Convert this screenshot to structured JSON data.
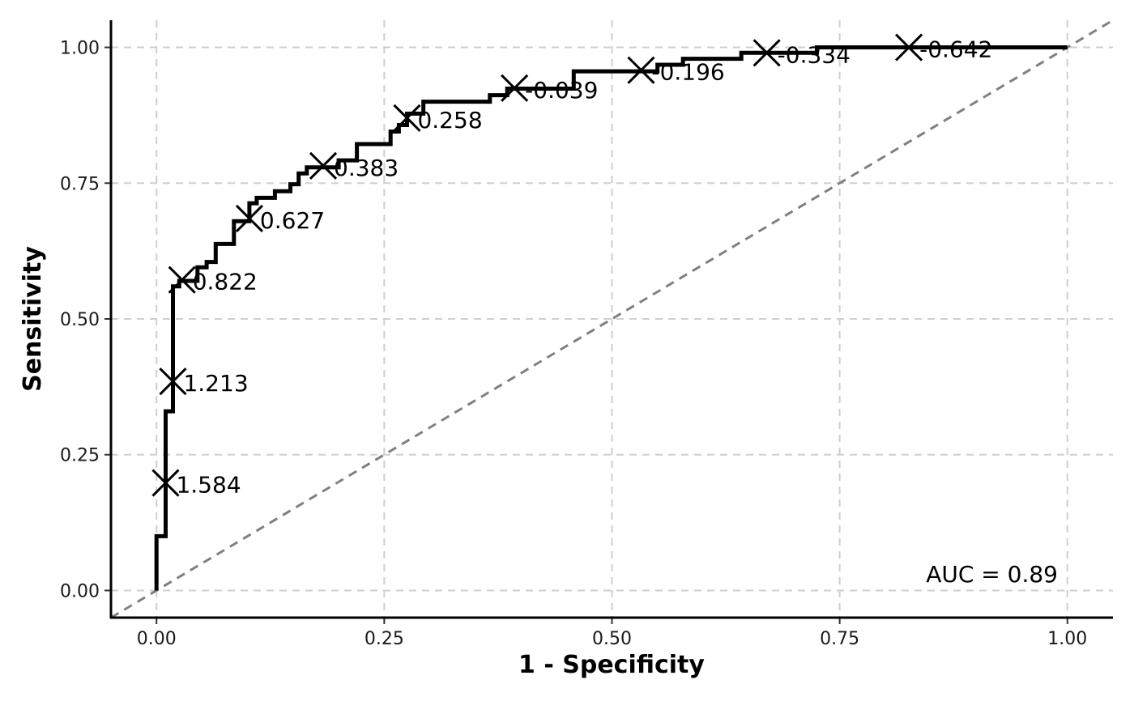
{
  "chart_data": {
    "type": "line",
    "xlabel": "1 - Specificity",
    "ylabel": "Sensitivity",
    "xlim": [
      -0.05,
      1.05
    ],
    "ylim": [
      -0.05,
      1.05
    ],
    "x_ticks": [
      "0.00",
      "0.25",
      "0.50",
      "0.75",
      "1.00"
    ],
    "y_ticks": [
      "0.00",
      "0.25",
      "0.50",
      "0.75",
      "1.00"
    ],
    "grid": "dashed major gridlines",
    "reference_line": {
      "from": [
        0,
        0
      ],
      "to": [
        1,
        1
      ],
      "style": "dashed",
      "color": "#808080"
    },
    "curve_color": "#000000",
    "roc_curve": [
      [
        0.0,
        0.0
      ],
      [
        0.0,
        0.1
      ],
      [
        0.01,
        0.1
      ],
      [
        0.01,
        0.33
      ],
      [
        0.018,
        0.33
      ],
      [
        0.018,
        0.56
      ],
      [
        0.025,
        0.56
      ],
      [
        0.025,
        0.57
      ],
      [
        0.045,
        0.57
      ],
      [
        0.045,
        0.595
      ],
      [
        0.055,
        0.595
      ],
      [
        0.055,
        0.605
      ],
      [
        0.065,
        0.605
      ],
      [
        0.065,
        0.638
      ],
      [
        0.085,
        0.638
      ],
      [
        0.085,
        0.68
      ],
      [
        0.102,
        0.68
      ],
      [
        0.102,
        0.713
      ],
      [
        0.11,
        0.713
      ],
      [
        0.11,
        0.723
      ],
      [
        0.13,
        0.723
      ],
      [
        0.13,
        0.735
      ],
      [
        0.147,
        0.735
      ],
      [
        0.147,
        0.748
      ],
      [
        0.156,
        0.748
      ],
      [
        0.156,
        0.768
      ],
      [
        0.165,
        0.768
      ],
      [
        0.165,
        0.779
      ],
      [
        0.2,
        0.779
      ],
      [
        0.2,
        0.792
      ],
      [
        0.22,
        0.792
      ],
      [
        0.22,
        0.822
      ],
      [
        0.257,
        0.822
      ],
      [
        0.257,
        0.845
      ],
      [
        0.266,
        0.845
      ],
      [
        0.266,
        0.857
      ],
      [
        0.275,
        0.857
      ],
      [
        0.275,
        0.878
      ],
      [
        0.293,
        0.878
      ],
      [
        0.293,
        0.9
      ],
      [
        0.366,
        0.9
      ],
      [
        0.366,
        0.912
      ],
      [
        0.385,
        0.912
      ],
      [
        0.385,
        0.924
      ],
      [
        0.458,
        0.924
      ],
      [
        0.458,
        0.956
      ],
      [
        0.55,
        0.956
      ],
      [
        0.55,
        0.968
      ],
      [
        0.578,
        0.968
      ],
      [
        0.578,
        0.979
      ],
      [
        0.642,
        0.979
      ],
      [
        0.642,
        0.99
      ],
      [
        0.725,
        0.99
      ],
      [
        0.725,
        1.0
      ],
      [
        1.0,
        1.0
      ]
    ],
    "cutpoints": [
      {
        "x": 0.01,
        "y": 0.198,
        "label": "1.584"
      },
      {
        "x": 0.018,
        "y": 0.385,
        "label": "1.213"
      },
      {
        "x": 0.028,
        "y": 0.572,
        "label": "0.822"
      },
      {
        "x": 0.102,
        "y": 0.685,
        "label": "0.627"
      },
      {
        "x": 0.183,
        "y": 0.782,
        "label": "0.383"
      },
      {
        "x": 0.275,
        "y": 0.87,
        "label": "0.258"
      },
      {
        "x": 0.393,
        "y": 0.925,
        "label": "-0.039"
      },
      {
        "x": 0.532,
        "y": 0.958,
        "label": "-0.196"
      },
      {
        "x": 0.67,
        "y": 0.99,
        "label": "-0.334"
      },
      {
        "x": 0.826,
        "y": 1.0,
        "label": "-0.642"
      }
    ],
    "annotations": [
      {
        "text": "AUC = 0.89",
        "position": "bottom-right"
      }
    ]
  }
}
